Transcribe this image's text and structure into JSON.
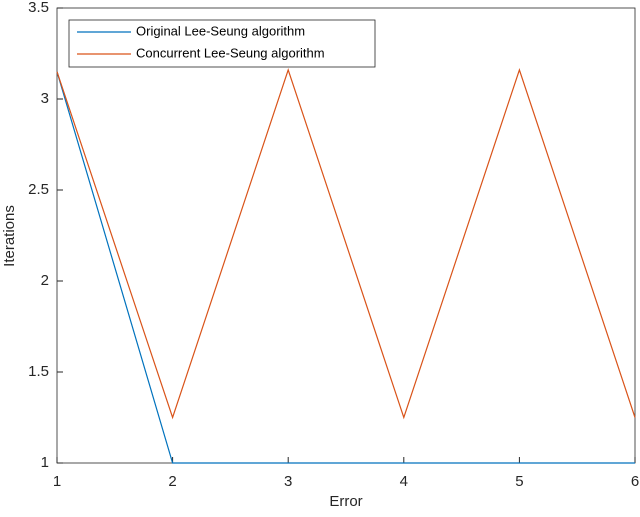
{
  "chart_data": {
    "type": "line",
    "x": [
      1,
      2,
      3,
      4,
      5,
      6
    ],
    "series": [
      {
        "name": "Original Lee-Seung algorithm",
        "color": "#0072BD",
        "values": [
          3.15,
          1,
          1,
          1,
          1,
          1
        ]
      },
      {
        "name": "Concurrent Lee-Seung algorithm",
        "color": "#D95319",
        "values": [
          3.15,
          1.25,
          3.16,
          1.25,
          3.16,
          1.25
        ]
      }
    ],
    "xlabel": "Error",
    "ylabel": "Iterations",
    "xlim": [
      1,
      6
    ],
    "xticks": [
      1,
      2,
      3,
      4,
      5,
      6
    ],
    "ylim": [
      1,
      3.5
    ],
    "yticks": [
      1,
      1.5,
      2,
      2.5,
      3,
      3.5
    ],
    "legend": "top-left"
  }
}
